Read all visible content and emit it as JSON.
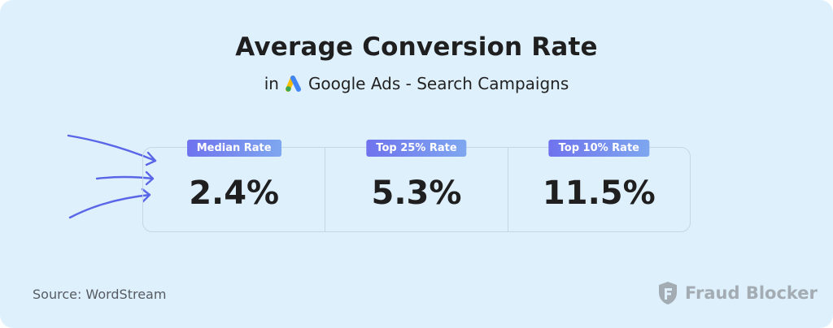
{
  "header": {
    "title": "Average Conversion Rate",
    "subtitle_prefix": "in",
    "subtitle_brand": "Google Ads - Search Campaigns",
    "logo_icon": "google-ads-logo"
  },
  "stats": [
    {
      "label": "Median Rate",
      "value": "2.4%"
    },
    {
      "label": "Top 25% Rate",
      "value": "5.3%"
    },
    {
      "label": "Top 10% Rate",
      "value": "11.5%"
    }
  ],
  "footer": {
    "source": "Source: WordStream",
    "brand": "Fraud Blocker",
    "brand_icon": "shield-icon"
  },
  "colors": {
    "background": "#dff0fd",
    "badge_start": "#6f73ee",
    "badge_end": "#7ea7ef",
    "arrow": "#5a66e8",
    "text": "#1f1f1f",
    "brand_gray": "#a3abb3"
  }
}
